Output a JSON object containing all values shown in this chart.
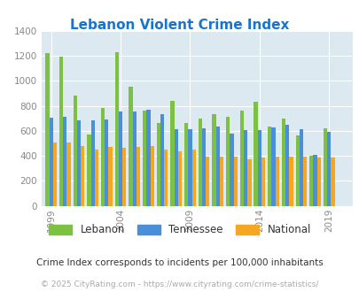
{
  "title": "Lebanon Violent Crime Index",
  "title_color": "#1874cd",
  "years": [
    1999,
    2000,
    2001,
    2002,
    2003,
    2004,
    2005,
    2006,
    2007,
    2008,
    2009,
    2010,
    2011,
    2012,
    2013,
    2014,
    2015,
    2016,
    2017,
    2018,
    2019
  ],
  "lebanon": [
    1220,
    1195,
    880,
    570,
    785,
    1230,
    950,
    760,
    665,
    840,
    665,
    695,
    730,
    715,
    760,
    830,
    635,
    700,
    565,
    400,
    620
  ],
  "tennessee": [
    705,
    715,
    685,
    685,
    690,
    755,
    755,
    765,
    730,
    610,
    610,
    620,
    635,
    580,
    605,
    605,
    625,
    650,
    615,
    405,
    595
  ],
  "national": [
    505,
    505,
    475,
    450,
    470,
    465,
    470,
    475,
    450,
    435,
    450,
    395,
    390,
    390,
    370,
    385,
    390,
    395,
    395,
    385,
    385
  ],
  "lebanon_color": "#7bc142",
  "tennessee_color": "#4a90d9",
  "national_color": "#f5a623",
  "bg_color": "#dce9f0",
  "ylim": [
    0,
    1400
  ],
  "yticks": [
    0,
    200,
    400,
    600,
    800,
    1000,
    1200,
    1400
  ],
  "xtick_years": [
    1999,
    2004,
    2009,
    2014,
    2019
  ],
  "footnote": "Crime Index corresponds to incidents per 100,000 inhabitants",
  "copyright": "© 2025 CityRating.com - https://www.cityrating.com/crime-statistics/",
  "legend_labels": [
    "Lebanon",
    "Tennessee",
    "National"
  ],
  "bar_width": 0.27
}
